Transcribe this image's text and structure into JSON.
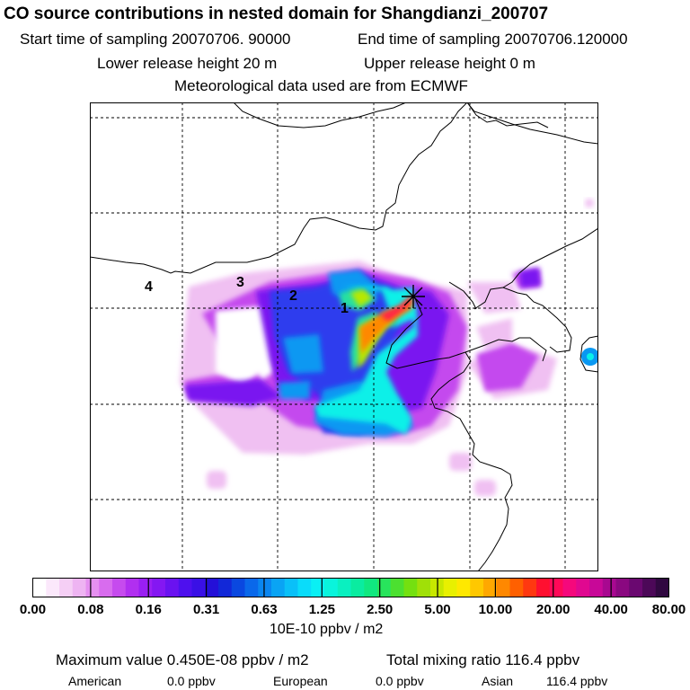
{
  "header": {
    "title": "CO  source contributions in nested domain for Shangdianzi_200707",
    "start_time": "Start time of sampling 20070706. 90000",
    "end_time": "End time of sampling 20070706.120000",
    "lower_height": "Lower release height   20 m",
    "upper_height": "Upper release height    0 m",
    "met_data": "Meteorological data used are from ECMWF"
  },
  "map": {
    "station_marker": "station-star-icon",
    "region_labels": [
      "1",
      "2",
      "3",
      "4"
    ]
  },
  "colorbar": {
    "ticks": [
      "0.00",
      "0.08",
      "0.16",
      "0.31",
      "0.63",
      "1.25",
      "2.50",
      "5.00",
      "10.00",
      "20.00",
      "40.00",
      "80.00"
    ],
    "unit": "10E-10 ppbv / m2",
    "colors": [
      "#ffffff",
      "#fbe8fb",
      "#f5cff5",
      "#eeb4f2",
      "#e590f0",
      "#d86cee",
      "#c64bee",
      "#b12ff0",
      "#9a1ff2",
      "#8417f2",
      "#6a12f0",
      "#4e10ee",
      "#3a10e6",
      "#2410d8",
      "#1228d8",
      "#0a48e0",
      "#0a68ea",
      "#0a86f0",
      "#0aa4f4",
      "#0ac0f8",
      "#0adcfa",
      "#0af0f4",
      "#0af4dc",
      "#0af0c0",
      "#0aeca0",
      "#10e880",
      "#28e45c",
      "#4ce030",
      "#74e010",
      "#a0e008",
      "#c8e800",
      "#e8f000",
      "#ffe800",
      "#ffc800",
      "#ffa800",
      "#ff8800",
      "#ff6000",
      "#ff3810",
      "#ff1030",
      "#ff0858",
      "#f5087c",
      "#e00890",
      "#c80898",
      "#a80890",
      "#8a0880",
      "#6a0870",
      "#4c0858",
      "#300840"
    ]
  },
  "footer": {
    "maximum_value": "Maximum value  0.450E-08 ppbv / m2",
    "total_mixing": "Total mixing ratio     116.4 ppbv",
    "american_label": "American",
    "american_value": "0.0 ppbv",
    "european_label": "European",
    "european_value": "0.0 ppbv",
    "asian_label": "Asian",
    "asian_value": "116.4 ppbv"
  }
}
